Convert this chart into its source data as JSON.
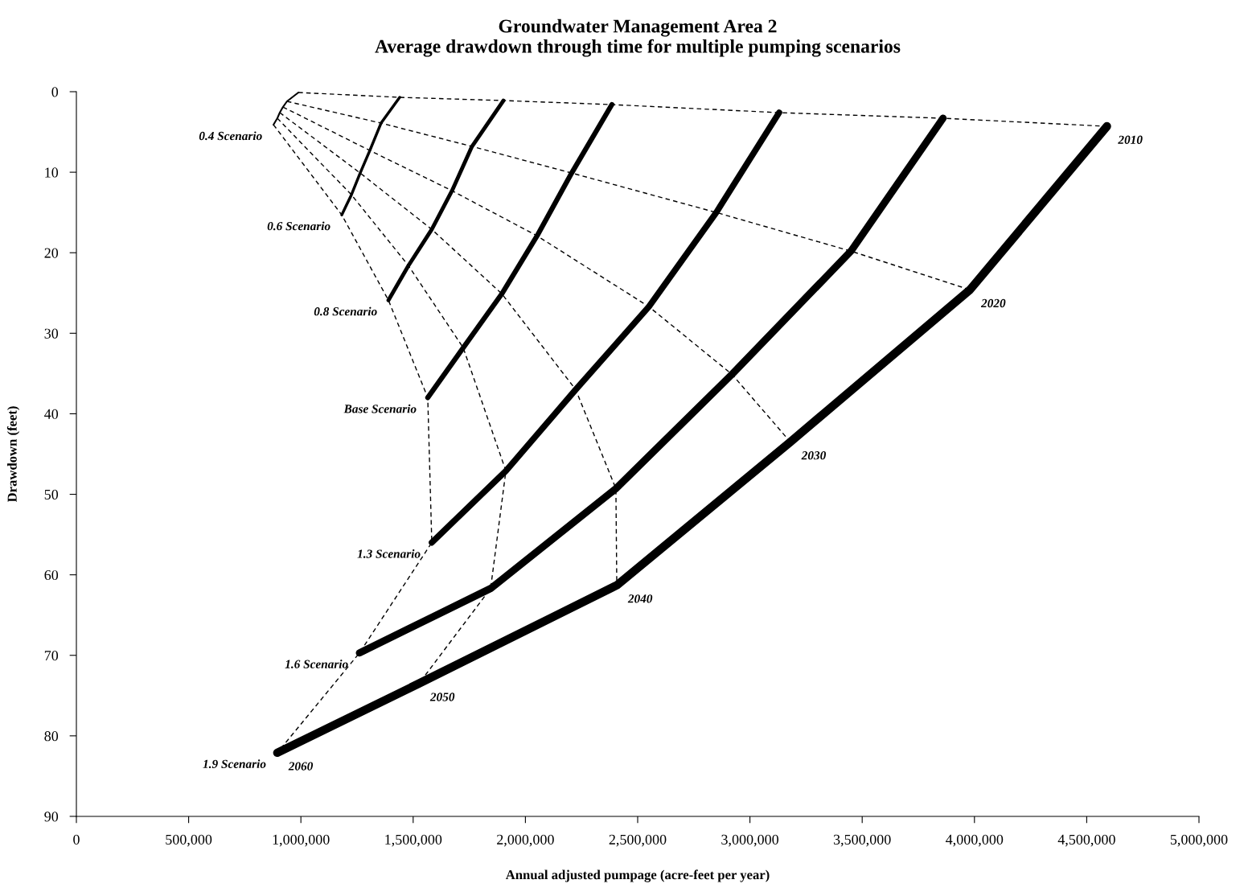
{
  "chart_data": {
    "type": "line",
    "title": "Groundwater Management Area 2\nAverage drawdown through time for multiple pumping scenarios",
    "xlabel": "Annual adjusted pumpage (acre-feet per year)",
    "ylabel": "Drawdown (feet)",
    "xlim": [
      0,
      5000000
    ],
    "ylim": [
      90,
      0
    ],
    "xticks": [
      0,
      {
        "value": 500000,
        "label": "500,000"
      },
      {
        "value": 1000000,
        "label": "1,000,000"
      },
      {
        "value": 1500000,
        "label": "1,500,000"
      },
      {
        "value": 2000000,
        "label": "2,000,000"
      },
      {
        "value": 2500000,
        "label": "2,500,000"
      },
      {
        "value": 3000000,
        "label": "3,000,000"
      },
      {
        "value": 3500000,
        "label": "3,500,000"
      },
      {
        "value": 4000000,
        "label": "4,000,000"
      },
      {
        "value": 4500000,
        "label": "4,500,000"
      },
      {
        "value": 5000000,
        "label": "5,000,000"
      }
    ],
    "yticks": [
      0,
      10,
      20,
      30,
      40,
      50,
      60,
      70,
      80,
      90
    ],
    "grid": false,
    "legend": false,
    "marker": "none",
    "series": [
      {
        "name": "0.4 Scenario",
        "color": "#000000",
        "line_style": "solid",
        "x": [
          989000,
          938000,
          920000,
          906000,
          895000,
          878000
        ],
        "values": [
          0.1,
          1.2,
          1.9,
          2.6,
          3.3,
          4.1
        ]
      },
      {
        "name": "0.6 Scenario",
        "color": "#000000",
        "line_style": "solid",
        "x": [
          1440000,
          1357000,
          1307000,
          1264000,
          1225000,
          1182000
        ],
        "values": [
          0.7,
          3.9,
          7.3,
          10.1,
          12.8,
          15.3
        ]
      },
      {
        "name": "0.8 Scenario",
        "color": "#000000",
        "line_style": "solid",
        "x": [
          1902000,
          1762000,
          1673000,
          1583000,
          1479000,
          1390000
        ],
        "values": [
          1.1,
          6.8,
          12.3,
          17.1,
          21.6,
          25.9
        ]
      },
      {
        "name": "Base Scenario",
        "color": "#000000",
        "line_style": "solid",
        "x": [
          2385000,
          2206000,
          2052000,
          1895000,
          1723000,
          1565000
        ],
        "values": [
          1.6,
          10.1,
          17.9,
          25.1,
          31.8,
          38.0
        ]
      },
      {
        "name": "1.3 Scenario",
        "color": "#000000",
        "line_style": "solid",
        "x": [
          3130000,
          2850000,
          2550000,
          2224000,
          1913000,
          1583000
        ],
        "values": [
          2.6,
          15.0,
          26.7,
          37.0,
          47.1,
          56.0
        ]
      },
      {
        "name": "1.6 Scenario",
        "color": "#000000",
        "line_style": "solid",
        "x": [
          3860000,
          3450000,
          2920000,
          2403000,
          1845000,
          1261000
        ],
        "values": [
          3.3,
          19.8,
          35.1,
          49.3,
          61.7,
          69.7
        ]
      },
      {
        "name": "1.9 Scenario",
        "color": "#000000",
        "line_style": "solid",
        "x": [
          4590000,
          3980000,
          3180000,
          2407000,
          1526000,
          895000
        ],
        "values": [
          4.3,
          24.6,
          43.5,
          61.3,
          73.5,
          82.1
        ]
      },
      {
        "name": "2010",
        "color": "#000000",
        "line_style": "dashed",
        "x": [
          989000,
          1440000,
          1902000,
          2385000,
          3130000,
          3860000,
          4590000
        ],
        "values": [
          0.1,
          0.7,
          1.1,
          1.6,
          2.6,
          3.3,
          4.3
        ]
      },
      {
        "name": "2020",
        "color": "#000000",
        "line_style": "dashed",
        "x": [
          938000,
          1357000,
          1762000,
          2206000,
          2850000,
          3450000,
          3980000
        ],
        "values": [
          1.2,
          3.9,
          6.8,
          10.1,
          15.0,
          19.8,
          24.6
        ]
      },
      {
        "name": "2030",
        "color": "#000000",
        "line_style": "dashed",
        "x": [
          920000,
          1307000,
          1673000,
          2052000,
          2550000,
          2920000,
          3180000
        ],
        "values": [
          1.9,
          7.3,
          12.3,
          17.9,
          26.7,
          35.1,
          43.5
        ]
      },
      {
        "name": "2040",
        "color": "#000000",
        "line_style": "dashed",
        "x": [
          906000,
          1264000,
          1583000,
          1895000,
          2224000,
          2403000,
          2407000
        ],
        "values": [
          2.6,
          10.1,
          17.1,
          25.1,
          37.0,
          49.3,
          61.3
        ]
      },
      {
        "name": "2050",
        "color": "#000000",
        "line_style": "dashed",
        "x": [
          895000,
          1225000,
          1479000,
          1723000,
          1913000,
          1845000,
          1526000
        ],
        "values": [
          3.3,
          12.8,
          21.6,
          31.8,
          47.1,
          61.7,
          73.5
        ]
      },
      {
        "name": "2060",
        "color": "#000000",
        "line_style": "dashed",
        "x": [
          878000,
          1182000,
          1390000,
          1565000,
          1583000,
          1261000,
          895000
        ],
        "values": [
          4.1,
          15.3,
          25.9,
          38.0,
          56.0,
          69.7,
          82.1
        ]
      }
    ]
  }
}
